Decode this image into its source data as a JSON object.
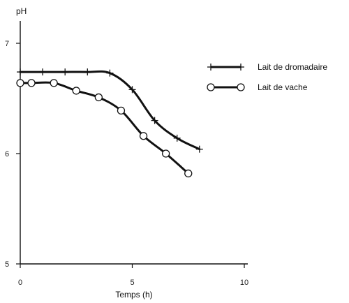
{
  "chart_data": {
    "type": "line",
    "xlabel": "Temps (h)",
    "ylabel": "pH",
    "xlim": [
      0,
      10
    ],
    "ylim": [
      5,
      7
    ],
    "xticks": [
      0,
      5,
      10
    ],
    "xtick_labels": [
      "0",
      "5",
      "10"
    ],
    "yticks": [
      5,
      6,
      7
    ],
    "ytick_labels": [
      "5",
      "6",
      "7"
    ],
    "grid": false,
    "legend_position": "top-right",
    "series": [
      {
        "name": "Lait de dromadaire",
        "marker": "plus",
        "x": [
          0,
          1,
          2,
          3,
          4,
          5,
          6,
          7,
          8
        ],
        "y": [
          6.74,
          6.74,
          6.74,
          6.74,
          6.73,
          6.58,
          6.3,
          6.14,
          6.04
        ]
      },
      {
        "name": "Lait de vache",
        "marker": "circle",
        "x": [
          0,
          0.5,
          1.5,
          2.5,
          3.5,
          4.5,
          5.5,
          6.5,
          7.5
        ],
        "y": [
          6.64,
          6.64,
          6.64,
          6.57,
          6.51,
          6.39,
          6.16,
          6.0,
          5.82
        ]
      }
    ]
  }
}
